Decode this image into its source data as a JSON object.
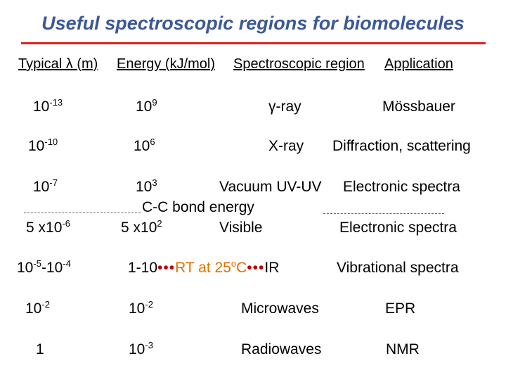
{
  "title": "Useful spectroscopic regions for biomolecules",
  "headers": {
    "wavelength": "Typical λ (m)",
    "energy": "Energy (kJ/mol)",
    "region": "Spectroscopic region",
    "application": "Application"
  },
  "rows": [
    {
      "wl_base": "10",
      "wl_exp": "-13",
      "en_base": "10",
      "en_exp": "9",
      "region": "γ-ray",
      "application": "Mössbauer"
    },
    {
      "wl_base": "10",
      "wl_exp": "-10",
      "en_base": "10",
      "en_exp": "6",
      "region": "X-ray",
      "application": "Diffraction, scattering"
    },
    {
      "wl_base": "10",
      "wl_exp": "-7",
      "en_base": "10",
      "en_exp": "3",
      "region": "Vacuum UV-UV",
      "application": "Electronic spectra"
    },
    {
      "wl_base": "5 x10",
      "wl_exp": "-6",
      "en_base": "5 x10",
      "en_exp": "2",
      "region": "Visible",
      "application": "Electronic spectra"
    },
    {
      "wl_a": "10",
      "wl_a_exp": "-5",
      "wl_b": "-10",
      "wl_b_exp": "-4",
      "en_text": "1-10",
      "dots": "•••",
      "mid_text": "RT at 25",
      "mid_sup": "o",
      "mid_unit": "C",
      "region": "IR",
      "application": "Vibrational spectra"
    },
    {
      "wl_base": "10",
      "wl_exp": "-2",
      "en_base": "10",
      "en_exp": "-2",
      "region": "Microwaves",
      "application": "EPR"
    },
    {
      "wl_base": "1",
      "wl_exp": "",
      "en_base": "10",
      "en_exp": "-3",
      "region": "Radiowaves",
      "application": "NMR"
    }
  ],
  "annotation": "C-C bond energy",
  "colors": {
    "title": "#3b5998",
    "rule": "#e02020"
  }
}
